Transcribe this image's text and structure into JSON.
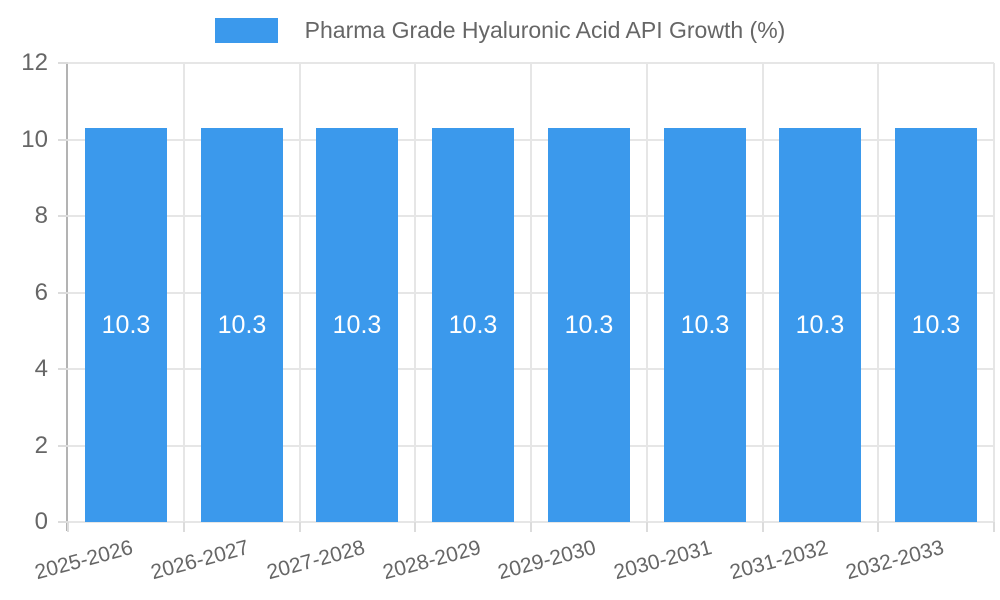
{
  "legend": {
    "label": "Pharma Grade Hyaluronic Acid API Growth (%)"
  },
  "colors": {
    "bar": "#3b99ec",
    "bar_label_text": "#ffffff",
    "axis_text": "#666666",
    "gridline": "#e6e6e6",
    "axis_line": "#b3b3b3"
  },
  "chart_data": {
    "type": "bar",
    "title": "Pharma Grade Hyaluronic Acid API Growth (%)",
    "categories": [
      "2025-2026",
      "2026-2027",
      "2027-2028",
      "2028-2029",
      "2029-2030",
      "2030-2031",
      "2031-2032",
      "2032-2033"
    ],
    "series": [
      {
        "name": "Pharma Grade Hyaluronic Acid API Growth (%)",
        "values": [
          10.3,
          10.3,
          10.3,
          10.3,
          10.3,
          10.3,
          10.3,
          10.3
        ],
        "value_labels": [
          "10.3",
          "10.3",
          "10.3",
          "10.3",
          "10.3",
          "10.3",
          "10.3",
          "10.3"
        ]
      }
    ],
    "xlabel": "",
    "ylabel": "",
    "ylim": [
      0,
      12
    ],
    "yticks": [
      0,
      2,
      4,
      6,
      8,
      10,
      12
    ],
    "grid": true,
    "legend_position": "top",
    "bar_label_position": "inside-center",
    "x_label_rotation_deg": -15
  }
}
